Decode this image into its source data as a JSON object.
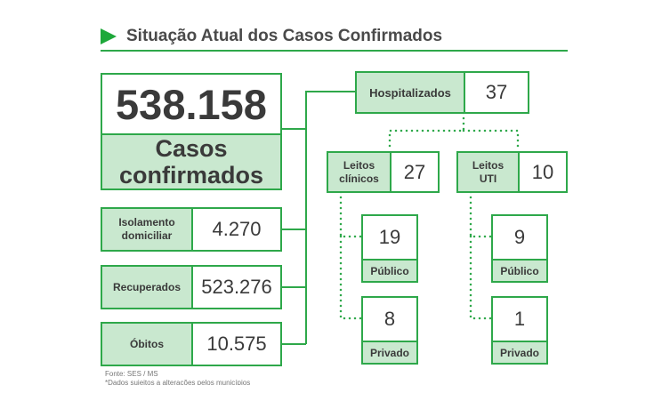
{
  "header": {
    "title": "Situação Atual dos Casos Confirmados",
    "marker_icon": "triangle-right-icon"
  },
  "total": {
    "value": "538.158",
    "label_line1": "Casos",
    "label_line2": "confirmados"
  },
  "status": [
    {
      "label_line1": "Isolamento",
      "label_line2": "domiciliar",
      "value": "4.270"
    },
    {
      "label": "Recuperados",
      "value": "523.276"
    },
    {
      "label": "Óbitos",
      "value": "10.575"
    }
  ],
  "hospitalized": {
    "label": "Hospitalizados",
    "value": "37"
  },
  "clinical_beds": {
    "label_line1": "Leitos",
    "label_line2": "clínicos",
    "value": "27",
    "public": {
      "value": "19",
      "label": "Público"
    },
    "private": {
      "value": "8",
      "label": "Privado"
    }
  },
  "icu_beds": {
    "label_line1": "Leitos",
    "label_line2": "UTI",
    "value": "10",
    "public": {
      "value": "9",
      "label": "Público"
    },
    "private": {
      "value": "1",
      "label": "Privado"
    }
  },
  "footer": {
    "source": "Fonte: SES / MS",
    "note": "*Dados sujeitos a alterações pelos municípios"
  },
  "colors": {
    "accent": "#2ea84a",
    "box_fill": "#c9e8cf",
    "text": "#3a3a3a"
  }
}
